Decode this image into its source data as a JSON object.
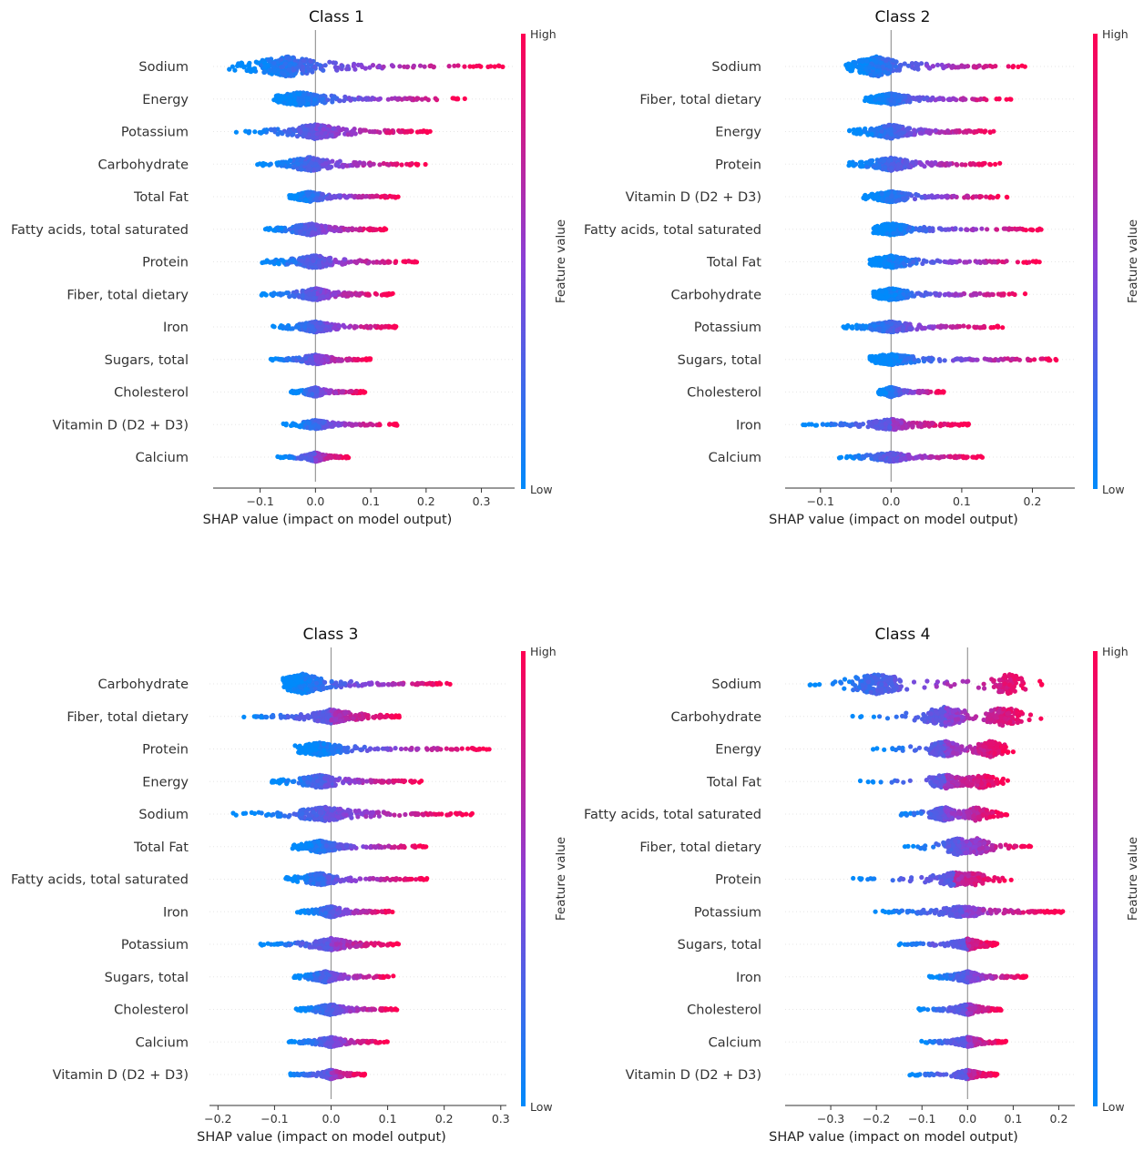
{
  "colors": {
    "low": "#008afb",
    "mid": "#8a40d6",
    "high": "#ff0052",
    "zero_line": "#999999",
    "text": "#333333"
  },
  "colorbar": {
    "high_label": "High",
    "low_label": "Low",
    "title": "Feature value"
  },
  "chart_data": [
    {
      "type": "scatter",
      "subtype": "shap-beeswarm",
      "title": "Class 1",
      "xlabel": "SHAP value (impact on model output)",
      "xlim": [
        -0.185,
        0.36
      ],
      "xticks": [
        -0.1,
        0.0,
        0.1,
        0.2,
        0.3
      ],
      "xtick_labels": [
        "−0.1",
        "0.0",
        "0.1",
        "0.2",
        "0.3"
      ],
      "features": [
        {
          "name": "Sodium",
          "min": -0.16,
          "neg_center": -0.05,
          "max": 0.34,
          "width": 1.0
        },
        {
          "name": "Energy",
          "min": -0.08,
          "neg_center": -0.025,
          "max": 0.275,
          "width": 0.7
        },
        {
          "name": "Potassium",
          "min": -0.155,
          "neg_center": 0.0,
          "max": 0.21,
          "width": 0.75
        },
        {
          "name": "Carbohydrate",
          "min": -0.11,
          "neg_center": -0.01,
          "max": 0.2,
          "width": 0.7
        },
        {
          "name": "Total Fat",
          "min": -0.05,
          "neg_center": -0.01,
          "max": 0.15,
          "width": 0.5
        },
        {
          "name": "Fatty acids, total saturated",
          "min": -0.095,
          "neg_center": -0.01,
          "max": 0.13,
          "width": 0.6
        },
        {
          "name": "Protein",
          "min": -0.11,
          "neg_center": 0.0,
          "max": 0.19,
          "width": 0.65
        },
        {
          "name": "Fiber, total dietary",
          "min": -0.105,
          "neg_center": 0.0,
          "max": 0.14,
          "width": 0.6
        },
        {
          "name": "Iron",
          "min": -0.08,
          "neg_center": 0.0,
          "max": 0.15,
          "width": 0.55
        },
        {
          "name": "Sugars, total",
          "min": -0.085,
          "neg_center": 0.0,
          "max": 0.1,
          "width": 0.5
        },
        {
          "name": "Cholesterol",
          "min": -0.05,
          "neg_center": 0.0,
          "max": 0.09,
          "width": 0.45
        },
        {
          "name": "Vitamin D (D2 + D3)",
          "min": -0.06,
          "neg_center": 0.0,
          "max": 0.15,
          "width": 0.45
        },
        {
          "name": "Calcium",
          "min": -0.07,
          "neg_center": 0.0,
          "max": 0.06,
          "width": 0.45
        }
      ]
    },
    {
      "type": "scatter",
      "subtype": "shap-beeswarm",
      "title": "Class 2",
      "xlabel": "SHAP value (impact on model output)",
      "xlim": [
        -0.15,
        0.26
      ],
      "xticks": [
        -0.1,
        0.0,
        0.1,
        0.2
      ],
      "xtick_labels": [
        "−0.1",
        "0.0",
        "0.1",
        "0.2"
      ],
      "features": [
        {
          "name": "Sodium",
          "min": -0.07,
          "neg_center": -0.02,
          "max": 0.19,
          "width": 1.0
        },
        {
          "name": "Fiber, total dietary",
          "min": -0.04,
          "neg_center": 0.0,
          "max": 0.17,
          "width": 0.55
        },
        {
          "name": "Energy",
          "min": -0.06,
          "neg_center": 0.0,
          "max": 0.15,
          "width": 0.7
        },
        {
          "name": "Protein",
          "min": -0.07,
          "neg_center": 0.0,
          "max": 0.16,
          "width": 0.65
        },
        {
          "name": "Vitamin D (D2 + D3)",
          "min": -0.04,
          "neg_center": 0.0,
          "max": 0.165,
          "width": 0.55
        },
        {
          "name": "Fatty acids, total saturated",
          "min": -0.025,
          "neg_center": 0.0,
          "max": 0.215,
          "width": 0.6
        },
        {
          "name": "Total Fat",
          "min": -0.03,
          "neg_center": 0.0,
          "max": 0.21,
          "width": 0.6
        },
        {
          "name": "Carbohydrate",
          "min": -0.025,
          "neg_center": 0.0,
          "max": 0.19,
          "width": 0.6
        },
        {
          "name": "Potassium",
          "min": -0.07,
          "neg_center": 0.0,
          "max": 0.16,
          "width": 0.55
        },
        {
          "name": "Sugars, total",
          "min": -0.03,
          "neg_center": 0.0,
          "max": 0.245,
          "width": 0.55
        },
        {
          "name": "Cholesterol",
          "min": -0.02,
          "neg_center": 0.0,
          "max": 0.075,
          "width": 0.5
        },
        {
          "name": "Iron",
          "min": -0.13,
          "neg_center": 0.0,
          "max": 0.11,
          "width": 0.55
        },
        {
          "name": "Calcium",
          "min": -0.08,
          "neg_center": 0.0,
          "max": 0.13,
          "width": 0.45
        }
      ]
    },
    {
      "type": "scatter",
      "subtype": "shap-beeswarm",
      "title": "Class 3",
      "xlabel": "SHAP value (impact on model output)",
      "xlim": [
        -0.215,
        0.31
      ],
      "xticks": [
        -0.2,
        -0.1,
        0.0,
        0.1,
        0.2,
        0.3
      ],
      "xtick_labels": [
        "−0.2",
        "−0.1",
        "0.0",
        "0.1",
        "0.2",
        "0.3"
      ],
      "features": [
        {
          "name": "Carbohydrate",
          "min": -0.09,
          "neg_center": -0.05,
          "max": 0.215,
          "width": 1.0
        },
        {
          "name": "Fiber, total dietary",
          "min": -0.16,
          "neg_center": 0.0,
          "max": 0.125,
          "width": 0.7
        },
        {
          "name": "Protein",
          "min": -0.065,
          "neg_center": -0.02,
          "max": 0.28,
          "width": 0.65
        },
        {
          "name": "Energy",
          "min": -0.11,
          "neg_center": -0.02,
          "max": 0.16,
          "width": 0.65
        },
        {
          "name": "Sodium",
          "min": -0.18,
          "neg_center": -0.01,
          "max": 0.25,
          "width": 0.7
        },
        {
          "name": "Total Fat",
          "min": -0.07,
          "neg_center": -0.02,
          "max": 0.17,
          "width": 0.6
        },
        {
          "name": "Fatty acids, total saturated",
          "min": -0.09,
          "neg_center": -0.02,
          "max": 0.17,
          "width": 0.6
        },
        {
          "name": "Iron",
          "min": -0.06,
          "neg_center": 0.0,
          "max": 0.11,
          "width": 0.55
        },
        {
          "name": "Potassium",
          "min": -0.13,
          "neg_center": 0.0,
          "max": 0.12,
          "width": 0.6
        },
        {
          "name": "Sugars, total",
          "min": -0.07,
          "neg_center": -0.01,
          "max": 0.11,
          "width": 0.55
        },
        {
          "name": "Cholesterol",
          "min": -0.065,
          "neg_center": 0.0,
          "max": 0.12,
          "width": 0.55
        },
        {
          "name": "Calcium",
          "min": -0.08,
          "neg_center": 0.0,
          "max": 0.1,
          "width": 0.5
        },
        {
          "name": "Vitamin D (D2 + D3)",
          "min": -0.08,
          "neg_center": 0.0,
          "max": 0.06,
          "width": 0.45
        }
      ]
    },
    {
      "type": "scatter",
      "subtype": "shap-beeswarm",
      "title": "Class 4",
      "xlabel": "SHAP value (impact on model output)",
      "xlim": [
        -0.4,
        0.235
      ],
      "xticks": [
        -0.3,
        -0.2,
        -0.1,
        0.0,
        0.1,
        0.2
      ],
      "xtick_labels": [
        "−0.3",
        "−0.2",
        "−0.1",
        "0.0",
        "0.1",
        "0.2"
      ],
      "features": [
        {
          "name": "Sodium",
          "min": -0.37,
          "neg_center": -0.2,
          "max": 0.19,
          "pos_center": 0.09,
          "width": 1.0
        },
        {
          "name": "Carbohydrate",
          "min": -0.26,
          "neg_center": -0.05,
          "max": 0.165,
          "pos_center": 0.08,
          "width": 0.95
        },
        {
          "name": "Energy",
          "min": -0.21,
          "neg_center": -0.05,
          "max": 0.105,
          "pos_center": 0.05,
          "width": 0.8
        },
        {
          "name": "Total Fat",
          "min": -0.245,
          "neg_center": -0.05,
          "max": 0.09,
          "pos_center": 0.03,
          "width": 0.7
        },
        {
          "name": "Fatty acids, total saturated",
          "min": -0.17,
          "neg_center": -0.05,
          "max": 0.09,
          "pos_center": 0.02,
          "width": 0.7
        },
        {
          "name": "Fiber, total dietary",
          "min": -0.14,
          "neg_center": -0.02,
          "max": 0.14,
          "pos_center": 0.02,
          "width": 0.85
        },
        {
          "name": "Protein",
          "min": -0.275,
          "neg_center": -0.03,
          "max": 0.1,
          "pos_center": 0.01,
          "width": 0.7
        },
        {
          "name": "Potassium",
          "min": -0.22,
          "neg_center": -0.01,
          "max": 0.21,
          "width": 0.55
        },
        {
          "name": "Sugars, total",
          "min": -0.16,
          "neg_center": 0.0,
          "max": 0.065,
          "width": 0.55
        },
        {
          "name": "Iron",
          "min": -0.09,
          "neg_center": 0.0,
          "max": 0.13,
          "width": 0.55
        },
        {
          "name": "Cholesterol",
          "min": -0.11,
          "neg_center": 0.0,
          "max": 0.075,
          "width": 0.55
        },
        {
          "name": "Calcium",
          "min": -0.11,
          "neg_center": 0.0,
          "max": 0.085,
          "width": 0.5
        },
        {
          "name": "Vitamin D (D2 + D3)",
          "min": -0.13,
          "neg_center": 0.0,
          "max": 0.065,
          "width": 0.45
        }
      ]
    }
  ]
}
